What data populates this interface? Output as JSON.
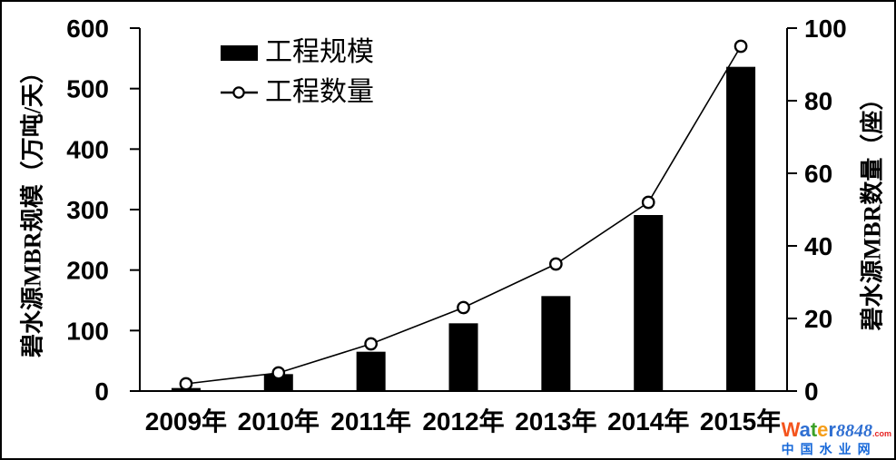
{
  "chart_data": {
    "type": "bar",
    "categories": [
      "2009年",
      "2010年",
      "2011年",
      "2012年",
      "2013年",
      "2014年",
      "2015年"
    ],
    "series": [
      {
        "name": "工程规模",
        "type": "bar",
        "axis": "left",
        "color": "#000000",
        "values": [
          5,
          28,
          65,
          112,
          157,
          291,
          536
        ]
      },
      {
        "name": "工程数量",
        "type": "line",
        "axis": "right",
        "color": "#000000",
        "marker": "open-circle",
        "values": [
          2,
          5,
          13,
          23,
          35,
          52,
          95
        ]
      }
    ],
    "left_axis": {
      "title": "碧水源MBR规模（万吨/天）",
      "min": 0,
      "max": 600,
      "step": 100,
      "ticks": [
        0,
        100,
        200,
        300,
        400,
        500,
        600
      ]
    },
    "right_axis": {
      "title": "碧水源MBR数量（座）",
      "min": 0,
      "max": 100,
      "step": 20,
      "ticks": [
        0,
        20,
        40,
        60,
        80,
        100
      ]
    },
    "title": "",
    "grid": false,
    "legend_position": "inside-top-left"
  },
  "legend": {
    "items": [
      {
        "label": "工程规模",
        "swatch": "filled-bar"
      },
      {
        "label": "工程数量",
        "swatch": "line-with-open-circle"
      }
    ]
  },
  "watermark": {
    "brand_letters": [
      {
        "char": "W",
        "color": "#f4541d"
      },
      {
        "char": "a",
        "color": "#2f6fd2"
      },
      {
        "char": "t",
        "color": "#3ba128"
      },
      {
        "char": "e",
        "color": "#f59d18"
      },
      {
        "char": "r",
        "color": "#2f6fd2"
      }
    ],
    "brand_number": "8848",
    "brand_number_color": "#2f6fd2",
    "brand_tld": ".com",
    "brand_tld_color": "#e62222",
    "tagline": "中国水业网",
    "tagline_color": "#1668d9"
  },
  "colors": {
    "bar": "#000000",
    "line": "#000000",
    "background": "#ffffff",
    "frame_border": "#000000"
  }
}
